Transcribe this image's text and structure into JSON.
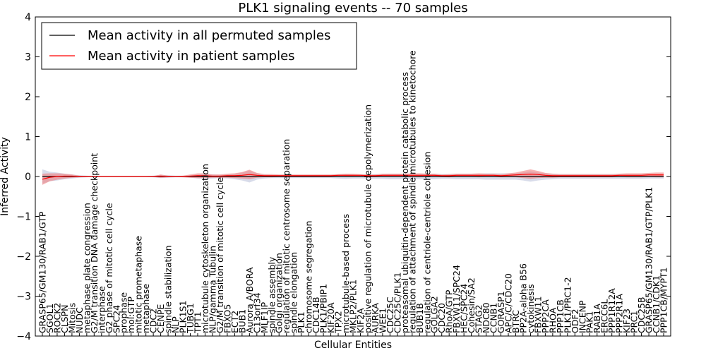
{
  "chart_data": {
    "type": "line",
    "title": "PLK1 signaling events -- 70 samples",
    "xlabel": "Cellular Entities",
    "ylabel": "Inferred Activity",
    "ylim": [
      -4,
      4
    ],
    "yticks": [
      "−4",
      "−3",
      "−2",
      "−1",
      "0",
      "1",
      "2",
      "3",
      "4"
    ],
    "legend_position": "top-left",
    "categories": [
      "GRASP65/GM130/RAB1/GTP",
      "SGOL1",
      "ROCK2",
      "CLSPN",
      "Mitosis",
      "NUDC",
      "metaphase plate congression",
      "G2/M transition DNA damage checkpoint",
      "interphase",
      "G2 phase of mitotic cell cycle",
      "SPC24",
      "prophase",
      "mol:GTP",
      "mitotic prometaphase",
      "metaphase",
      "CDC2",
      "CENPE",
      "spindle stabilization",
      "NLP",
      "PLK1S1",
      "TUBG1",
      "TPT1",
      "microtubule cytoskeleton organization",
      "NLP/gamma Tubulin",
      "G2/M transition of mitotic cell cycle",
      "FBXO5",
      "ECT2",
      "BUB1",
      "Aurora A/BORA",
      "C13orf34",
      "MLF1IP",
      "spindle assembly",
      "Golgi organization",
      "regulation of mitotic centrosome separation",
      "spindle elongation",
      "PLK1",
      "chromosome segregation",
      "CDC14B",
      "PLK1/PBIP1",
      "KIF20A",
      "TPX2",
      "microtubule-based process",
      "MKLP2/PLK1",
      "KIF2A",
      "positive regulation of microtubule depolymerization",
      "AURKA",
      "WEE1",
      "CDC25C",
      "CDC25C/PLK1",
      "proteasomal ubiquitin-dependent protein catabolic process",
      "regulation of attachment of spindle microtubules to kinetochore",
      "BUB1B",
      "regulation of centriole-centriole cohesion",
      "GOLGA2",
      "CDC20",
      "RhoA/GTP",
      "FBXW11/SPC24",
      "HEC/SPC24",
      "Cohesin/SA2",
      "STAG2",
      "NDC80",
      "CCNB1",
      "GORASP1",
      "APC/C/CDC20",
      "BTRC",
      "PP2A-alpha B56",
      "cytokinesis",
      "FBXW11",
      "PPP2CA",
      "RHOA",
      "PPP1CB",
      "PLK1/PRC1-2",
      "ODF2",
      "INCENP",
      "PAK1",
      "RAB1A",
      "ERCC6L",
      "PPP1R12A",
      "PPP2R1A",
      "KIF23",
      "PRC1",
      "CDC25B",
      "GRASP65/GM130/RAB1/GTP/PLK1",
      "CCNB1/CDK1",
      "PPP1CB/MYPT1"
    ],
    "series": [
      {
        "name": "Mean activity in all permuted samples",
        "color": "#000000",
        "values": [
          0,
          0,
          0,
          0,
          0,
          0,
          0,
          0,
          0,
          0,
          0,
          0,
          0,
          0,
          0,
          0,
          0,
          0,
          0,
          0,
          0,
          0,
          0,
          0,
          0,
          0,
          0,
          0,
          0,
          0,
          0,
          0,
          0,
          0,
          0,
          0,
          0,
          0,
          0,
          0,
          0,
          0,
          0,
          0,
          0,
          0,
          0,
          0,
          0,
          0,
          0,
          0,
          0,
          0,
          0,
          0,
          0,
          0,
          0,
          0,
          0,
          0,
          0,
          0,
          0,
          0,
          0,
          0,
          0,
          0,
          0,
          0,
          0,
          0,
          0,
          0,
          0,
          0,
          0,
          0,
          0,
          0,
          0,
          0,
          0
        ],
        "band_color": "#b8bfd8",
        "band_halfwidth": [
          0.18,
          0.12,
          0.1,
          0.07,
          0.05,
          0.03,
          0.02,
          0.01,
          0.01,
          0.01,
          0.01,
          0.01,
          0.01,
          0.01,
          0.01,
          0.02,
          0.04,
          0.03,
          0.02,
          0.02,
          0.03,
          0.05,
          0.06,
          0.05,
          0.04,
          0.05,
          0.07,
          0.1,
          0.15,
          0.08,
          0.05,
          0.04,
          0.04,
          0.04,
          0.04,
          0.04,
          0.04,
          0.04,
          0.04,
          0.04,
          0.05,
          0.06,
          0.05,
          0.05,
          0.05,
          0.06,
          0.06,
          0.07,
          0.07,
          0.07,
          0.07,
          0.07,
          0.07,
          0.07,
          0.06,
          0.06,
          0.07,
          0.07,
          0.07,
          0.07,
          0.08,
          0.08,
          0.08,
          0.08,
          0.08,
          0.1,
          0.13,
          0.1,
          0.08,
          0.07,
          0.06,
          0.06,
          0.06,
          0.06,
          0.06,
          0.06,
          0.06,
          0.06,
          0.06,
          0.06,
          0.06,
          0.06,
          0.05,
          0.05,
          0.05
        ]
      },
      {
        "name": "Mean activity in patient samples",
        "color": "#ff0000",
        "values": [
          -0.07,
          -0.02,
          0,
          0.01,
          0.01,
          0,
          0,
          0,
          0,
          0,
          0,
          0,
          0,
          0,
          0,
          0,
          0.01,
          0,
          0,
          0,
          0.01,
          0.02,
          0.02,
          0.01,
          0.01,
          0.02,
          0.02,
          0.03,
          0.05,
          0.03,
          0.02,
          0.02,
          0.02,
          0.02,
          0.02,
          0.02,
          0.02,
          0.02,
          0.02,
          0.02,
          0.03,
          0.03,
          0.03,
          0.03,
          0.02,
          0.02,
          0.03,
          0.03,
          0.03,
          0.03,
          0.03,
          0.03,
          0.03,
          0.03,
          0.02,
          0.02,
          0.03,
          0.03,
          0.03,
          0.03,
          0.03,
          0.03,
          0.02,
          0.03,
          0.04,
          0.05,
          0.06,
          0.05,
          0.03,
          0.02,
          0.02,
          0.02,
          0.02,
          0.02,
          0.02,
          0.02,
          0.02,
          0.02,
          0.03,
          0.03,
          0.03,
          0.03,
          0.04,
          0.04,
          0.04
        ],
        "band_color": "#f08080",
        "band_halfwidth": [
          0.14,
          0.1,
          0.08,
          0.06,
          0.04,
          0.02,
          0.01,
          0.005,
          0.005,
          0.005,
          0.005,
          0.005,
          0.005,
          0.005,
          0.005,
          0.01,
          0.04,
          0.02,
          0.01,
          0.02,
          0.04,
          0.06,
          0.06,
          0.04,
          0.04,
          0.05,
          0.06,
          0.08,
          0.12,
          0.06,
          0.04,
          0.04,
          0.03,
          0.03,
          0.03,
          0.03,
          0.03,
          0.03,
          0.03,
          0.03,
          0.03,
          0.04,
          0.04,
          0.03,
          0.03,
          0.03,
          0.04,
          0.04,
          0.04,
          0.04,
          0.05,
          0.05,
          0.04,
          0.04,
          0.03,
          0.04,
          0.04,
          0.04,
          0.04,
          0.05,
          0.04,
          0.04,
          0.04,
          0.05,
          0.06,
          0.09,
          0.12,
          0.09,
          0.06,
          0.05,
          0.04,
          0.04,
          0.04,
          0.04,
          0.04,
          0.04,
          0.04,
          0.04,
          0.04,
          0.05,
          0.05,
          0.05,
          0.05,
          0.06,
          0.06
        ]
      }
    ]
  }
}
